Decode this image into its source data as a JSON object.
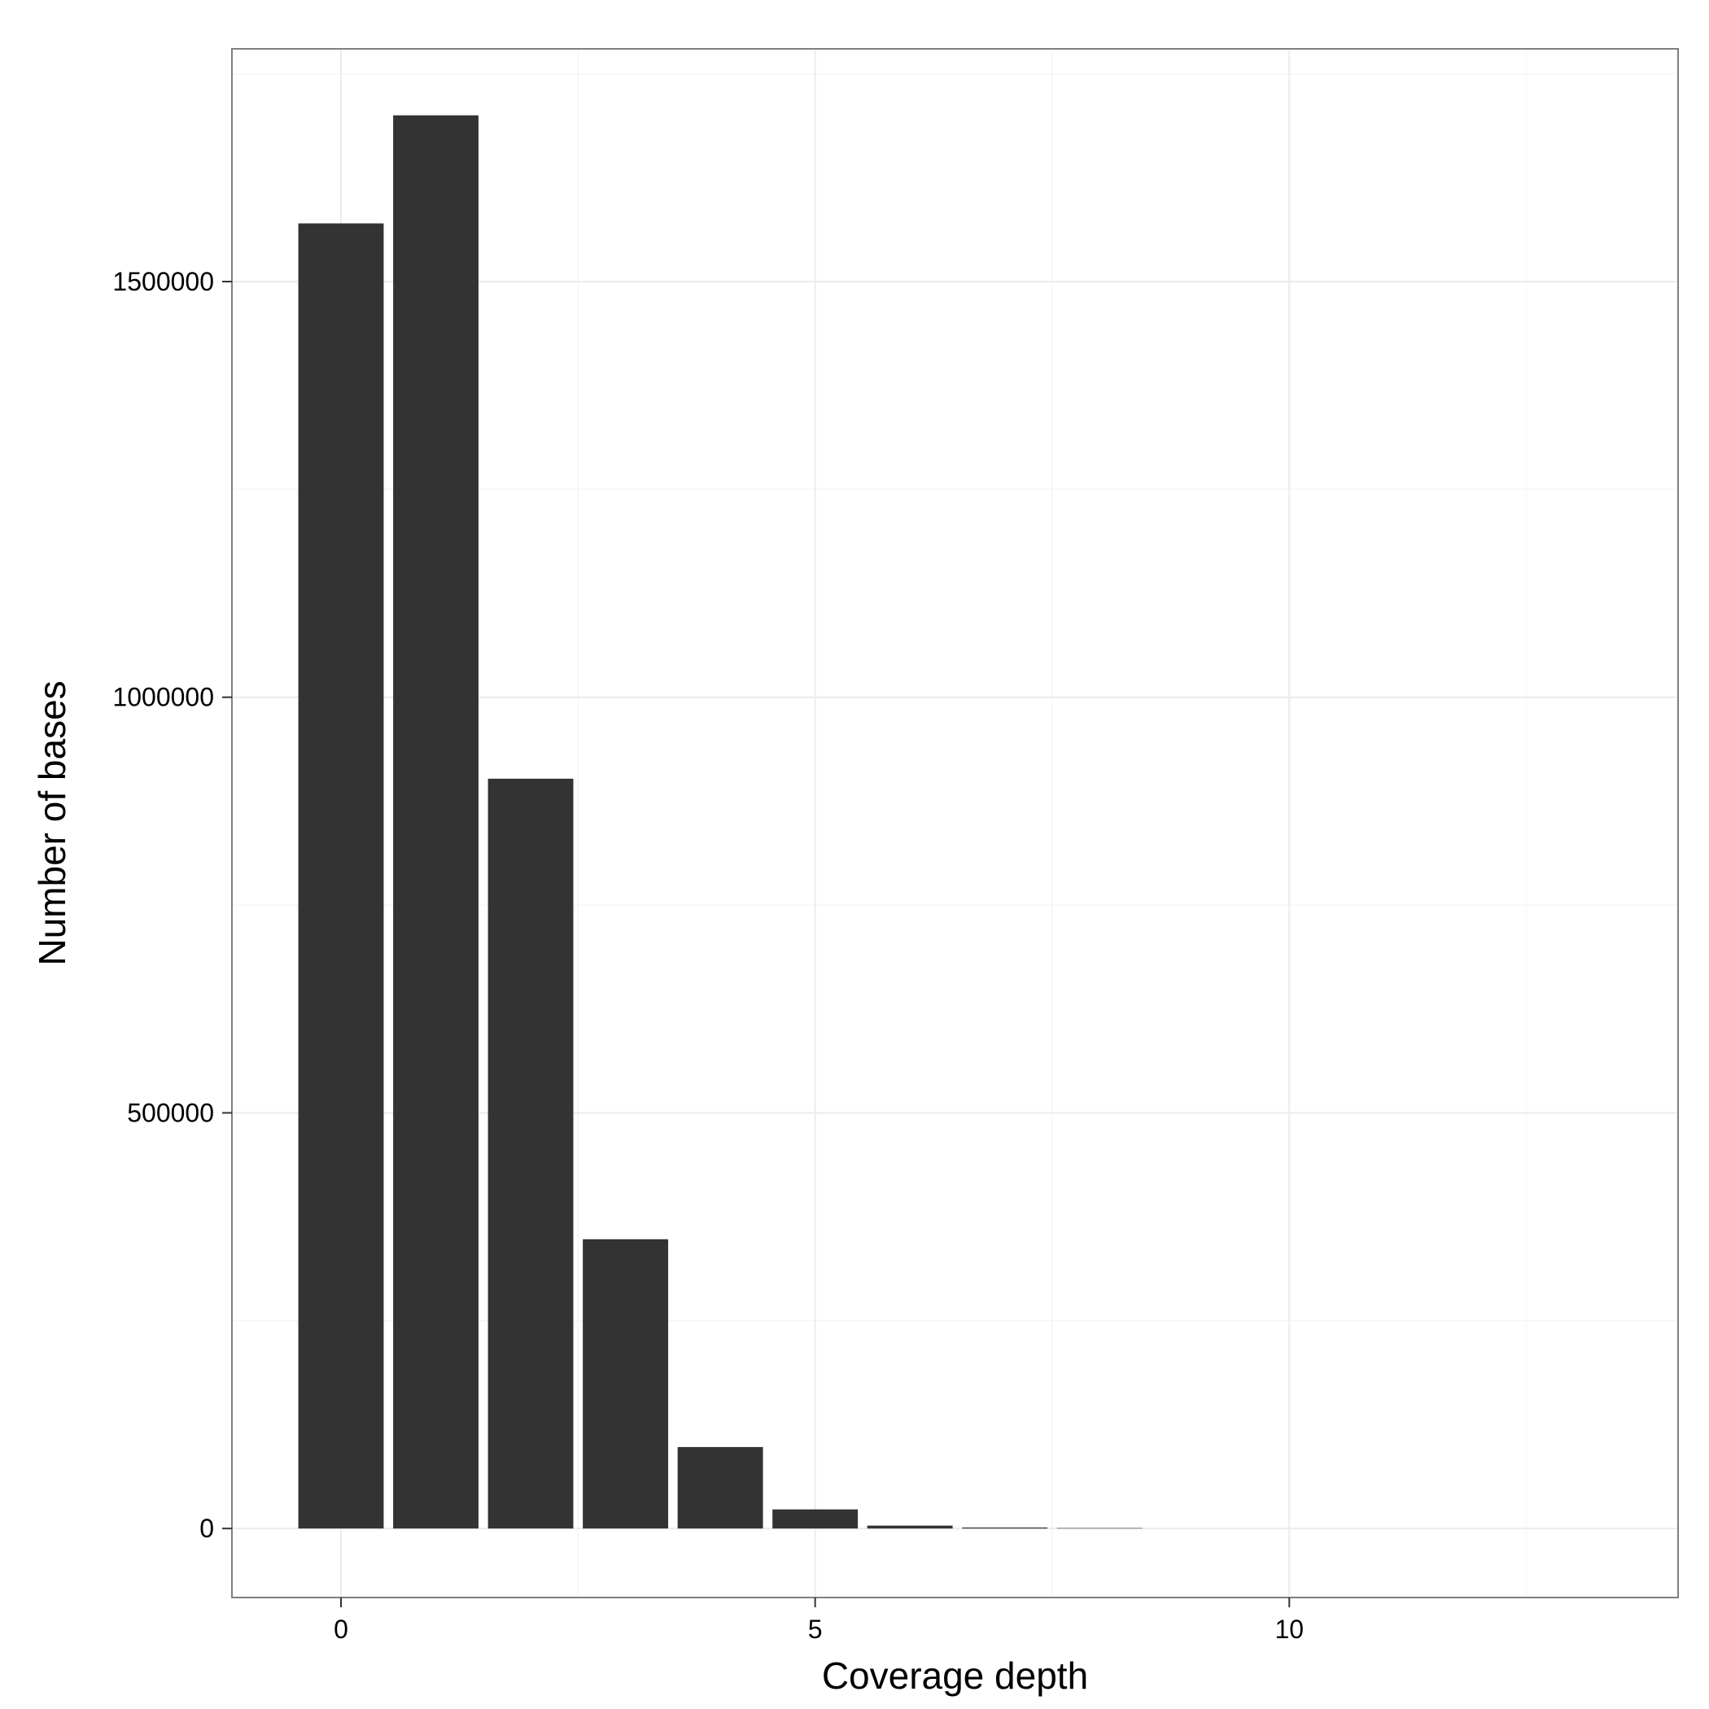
{
  "chart_data": {
    "type": "bar",
    "title": "",
    "xlabel": "Coverage depth",
    "ylabel": "Number of bases",
    "x": [
      0,
      1,
      2,
      3,
      4,
      5,
      6,
      7,
      8
    ],
    "values": [
      1570000,
      1700000,
      902000,
      348000,
      98000,
      23000,
      3500,
      1200,
      600
    ],
    "xlim": [
      -1.15,
      14.1
    ],
    "ylim": [
      -83000,
      1780000
    ],
    "x_ticks": [
      0,
      5,
      10
    ],
    "x_tick_labels": [
      "0",
      "5",
      "10"
    ],
    "y_ticks": [
      0,
      500000,
      1000000,
      1500000
    ],
    "y_tick_labels": [
      "0",
      "500000",
      "1000000",
      "1500000"
    ],
    "bar_width": 0.9,
    "grid": true,
    "legend": "none",
    "colors": {
      "bar": "#333333",
      "panel_border": "#7f7f7f",
      "grid_major": "#ebebeb",
      "grid_minor": "#f5f5f5",
      "tick_mark": "#333333",
      "text": "#000000",
      "background": "#ffffff"
    }
  }
}
